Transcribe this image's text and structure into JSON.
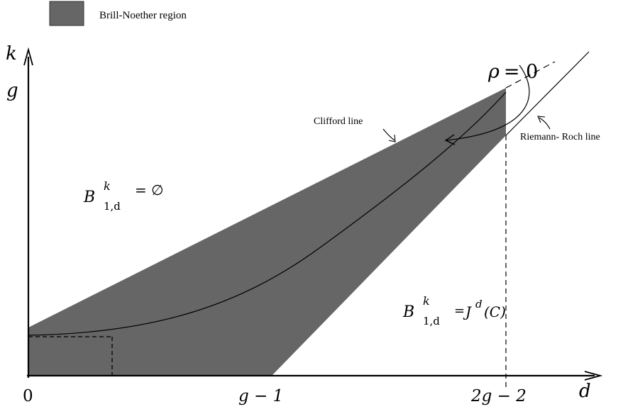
{
  "colors": {
    "region_fill": "#666666",
    "line": "#000000",
    "background": "#ffffff"
  },
  "legend": {
    "label": "Brill-Noether region"
  },
  "axes": {
    "y_label": "k",
    "x_label": "d",
    "y_tick_g": "g",
    "x_tick_0": "0",
    "x_tick_g1": "g − 1",
    "x_tick_2g2": "2g − 2"
  },
  "annotations": {
    "rho_base": "ρ",
    "rho_eq": "= 0",
    "clifford": "Clifford line",
    "riemann_roch": "Riemann- Roch line"
  },
  "formulas": {
    "empty": {
      "base": "B",
      "sup": "k",
      "sub": "1,d",
      "rhs": "= ∅"
    },
    "full": {
      "base": "B",
      "sup": "k",
      "sub": "1,d",
      "rhs_eq": "=",
      "rhs_j": "J",
      "rhs_sup": "d",
      "rhs_tail": "(C)"
    }
  }
}
